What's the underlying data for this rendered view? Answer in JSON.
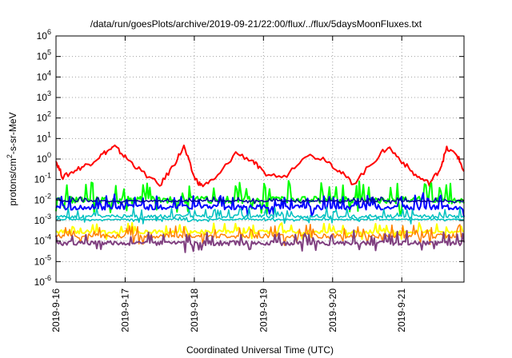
{
  "chart_data": {
    "type": "line",
    "title": "/data/run/goesPlots/archive/2019-09-21/22:00/flux/../flux/5daysMoonFluxes.txt",
    "xlabel": "Coordinated Universal Time (UTC)",
    "ylabel_parts": {
      "pre": "protons/cm",
      "sup": "2",
      "post": "-s-sr-MeV"
    },
    "y_scale": "log",
    "ylim_exp": [
      -6,
      6
    ],
    "y_ticks": [
      {
        "base": "10",
        "exp": "-6"
      },
      {
        "base": "10",
        "exp": "-5"
      },
      {
        "base": "10",
        "exp": "-4"
      },
      {
        "base": "10",
        "exp": "-3"
      },
      {
        "base": "10",
        "exp": "-2"
      },
      {
        "base": "10",
        "exp": "-1"
      },
      {
        "base": "10",
        "exp": "0"
      },
      {
        "base": "10",
        "exp": "1"
      },
      {
        "base": "10",
        "exp": "2"
      },
      {
        "base": "10",
        "exp": "3"
      },
      {
        "base": "10",
        "exp": "4"
      },
      {
        "base": "10",
        "exp": "5"
      },
      {
        "base": "10",
        "exp": "6"
      }
    ],
    "x_range_days": [
      0,
      5.9
    ],
    "x_ticks": [
      {
        "day": 0,
        "label": "2019-9-16"
      },
      {
        "day": 1,
        "label": "2019-9-17"
      },
      {
        "day": 2,
        "label": "2019-9-18"
      },
      {
        "day": 3,
        "label": "2019-9-19"
      },
      {
        "day": 4,
        "label": "2019-9-20"
      },
      {
        "day": 5,
        "label": "2019-9-21"
      }
    ],
    "grid": true,
    "series": [
      {
        "color": "#ff0000",
        "width": 2,
        "x": [
          0,
          0.1,
          0.3,
          0.5,
          0.7,
          0.85,
          1.0,
          1.2,
          1.5,
          1.7,
          1.85,
          2.0,
          2.1,
          2.3,
          2.6,
          2.85,
          3.0,
          3.3,
          3.6,
          3.9,
          4.1,
          4.3,
          4.6,
          4.8,
          5.0,
          5.2,
          5.4,
          5.55,
          5.65,
          5.8,
          5.9
        ],
        "y": [
          -0.1,
          -0.9,
          -0.5,
          -0.2,
          0.3,
          0.6,
          0.1,
          -0.5,
          -1.3,
          -0.3,
          0.6,
          -0.9,
          -1.3,
          -1.0,
          0.3,
          -0.1,
          -0.7,
          -0.9,
          0.2,
          0.0,
          -0.6,
          -1.2,
          -0.1,
          0.6,
          -0.1,
          -0.8,
          -1.2,
          -0.5,
          0.5,
          0.2,
          -0.6
        ]
      },
      {
        "color": "#00ff00",
        "width": 2,
        "base": -2.0,
        "amp": 0.7,
        "seed": 1
      },
      {
        "color": "#0000ff",
        "width": 2,
        "base": -2.35,
        "amp": 0.5,
        "seed": 2
      },
      {
        "color": "#0000a0",
        "width": 1.5,
        "base": -2.05,
        "amp": 0.15,
        "seed": 3
      },
      {
        "color": "#00c0c0",
        "width": 1.5,
        "base": -2.8,
        "amp": 0.35,
        "seed": 4
      },
      {
        "color": "#00c0c0",
        "width": 1.5,
        "base": -2.95,
        "amp": 0.1,
        "seed": 5
      },
      {
        "color": "#ffff00",
        "width": 2,
        "base": -3.55,
        "amp": 0.35,
        "seed": 6
      },
      {
        "color": "#ff8000",
        "width": 1.5,
        "base": -3.75,
        "amp": 0.45,
        "seed": 7
      },
      {
        "color": "#804080",
        "width": 2,
        "base": -4.1,
        "amp": 0.45,
        "seed": 8
      }
    ]
  }
}
